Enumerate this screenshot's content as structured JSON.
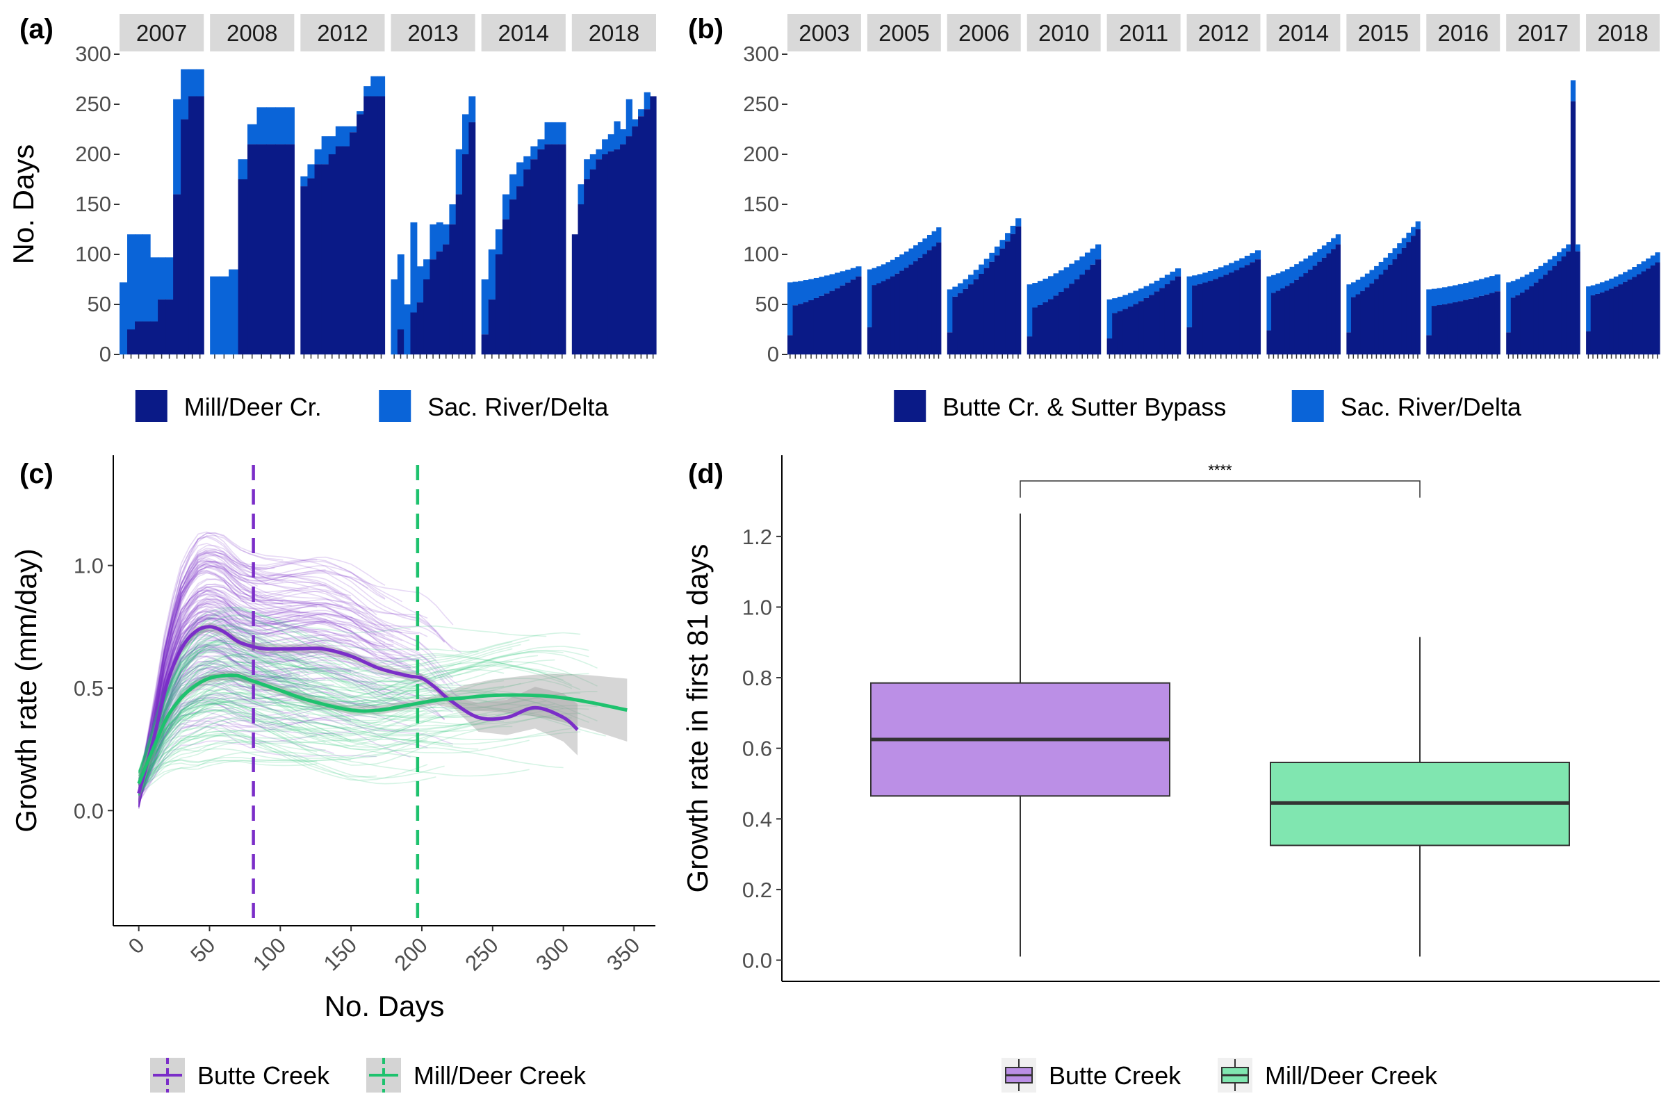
{
  "panels": {
    "a": "(a)",
    "b": "(b)",
    "c": "(c)",
    "d": "(d)"
  },
  "chart_data": [
    {
      "id": "a",
      "type": "bar",
      "ylabel": "No. Days",
      "ylim": [
        0,
        300
      ],
      "yticks": [
        0,
        50,
        100,
        150,
        200,
        250,
        300
      ],
      "legend": [
        "Mill/Deer Cr.",
        "Sac. River/Delta"
      ],
      "legend_position": "bottom",
      "colors": {
        "Mill/Deer Cr.": "#0a1a87",
        "Sac. River/Delta": "#0a64d8"
      },
      "facets": [
        {
          "label": "2007",
          "creek": [
            0,
            25,
            33,
            33,
            33,
            55,
            55,
            160,
            235,
            258,
            258
          ],
          "total": [
            72,
            120,
            120,
            120,
            97,
            97,
            97,
            255,
            285,
            285,
            285
          ]
        },
        {
          "label": "2008",
          "creek": [
            0,
            0,
            0,
            175,
            210,
            210,
            210,
            210,
            210
          ],
          "total": [
            78,
            78,
            85,
            195,
            230,
            247,
            247,
            247,
            247
          ]
        },
        {
          "label": "2012",
          "creek": [
            168,
            176,
            190,
            190,
            200,
            208,
            208,
            222,
            240,
            258,
            258,
            258
          ],
          "total": [
            178,
            190,
            205,
            218,
            218,
            228,
            228,
            228,
            243,
            268,
            278,
            278
          ]
        },
        {
          "label": "2013",
          "creek": [
            0,
            25,
            0,
            42,
            52,
            75,
            95,
            103,
            110,
            130,
            160,
            200,
            232
          ],
          "total": [
            75,
            100,
            50,
            132,
            88,
            95,
            130,
            132,
            130,
            150,
            205,
            240,
            258
          ]
        },
        {
          "label": "2014",
          "creek": [
            20,
            55,
            100,
            135,
            155,
            168,
            185,
            195,
            205,
            210,
            210,
            210
          ],
          "total": [
            75,
            105,
            125,
            160,
            180,
            192,
            198,
            208,
            215,
            232,
            232,
            232
          ]
        },
        {
          "label": "2018",
          "creek": [
            120,
            150,
            175,
            185,
            195,
            200,
            203,
            205,
            210,
            218,
            228,
            238,
            245,
            258
          ],
          "total": [
            80,
            170,
            195,
            200,
            205,
            215,
            220,
            233,
            225,
            255,
            235,
            245,
            262,
            258
          ]
        }
      ]
    },
    {
      "id": "b",
      "type": "bar",
      "ylim": [
        0,
        300
      ],
      "yticks": [
        0,
        50,
        100,
        150,
        200,
        250,
        300
      ],
      "legend": [
        "Butte Cr. & Sutter Bypass",
        "Sac. River/Delta"
      ],
      "legend_position": "bottom",
      "colors": {
        "Butte Cr. & Sutter Bypass": "#0a1a87",
        "Sac. River/Delta": "#0a64d8"
      },
      "facets": [
        {
          "label": "2003",
          "start_creek": 48,
          "end_creek": 78,
          "start_total": 72,
          "end_total": 88,
          "n": 14
        },
        {
          "label": "2005",
          "start_creek": 68,
          "end_creek": 112,
          "start_total": 85,
          "end_total": 127,
          "n": 16
        },
        {
          "label": "2006",
          "start_creek": 55,
          "end_creek": 128,
          "start_total": 65,
          "end_total": 136,
          "n": 14
        },
        {
          "label": "2010",
          "start_creek": 45,
          "end_creek": 95,
          "start_total": 70,
          "end_total": 110,
          "n": 14
        },
        {
          "label": "2011",
          "start_creek": 40,
          "end_creek": 78,
          "start_total": 55,
          "end_total": 86,
          "n": 14
        },
        {
          "label": "2012",
          "start_creek": 68,
          "end_creek": 95,
          "start_total": 78,
          "end_total": 104,
          "n": 14
        },
        {
          "label": "2014",
          "start_creek": 60,
          "end_creek": 110,
          "start_total": 78,
          "end_total": 120,
          "n": 16
        },
        {
          "label": "2015",
          "start_creek": 55,
          "end_creek": 125,
          "start_total": 70,
          "end_total": 133,
          "n": 16
        },
        {
          "label": "2016",
          "start_creek": 48,
          "end_creek": 63,
          "start_total": 65,
          "end_total": 80,
          "n": 14
        },
        {
          "label": "2017",
          "start_creek": 55,
          "end_creek": 103,
          "start_total": 72,
          "end_total": 110,
          "n": 14,
          "spike_creek": 253,
          "spike_total": 274
        },
        {
          "label": "2018",
          "start_creek": 58,
          "end_creek": 92,
          "start_total": 68,
          "end_total": 102,
          "n": 16
        }
      ]
    },
    {
      "id": "c",
      "type": "line",
      "xlabel": "No. Days",
      "ylabel": "Growth rate (mm/day)",
      "xlim": [
        -18,
        365
      ],
      "ylim": [
        -0.47,
        1.45
      ],
      "xticks": [
        0,
        50,
        100,
        150,
        200,
        250,
        300,
        350
      ],
      "yticks": [
        0.0,
        0.5,
        1.0
      ],
      "legend": [
        "Butte Creek",
        "Mill/Deer Creek"
      ],
      "legend_position": "bottom",
      "series": [
        {
          "name": "Butte Creek",
          "color": "#7b2ec8",
          "x": [
            0,
            10,
            20,
            30,
            40,
            50,
            60,
            70,
            80,
            90,
            110,
            130,
            150,
            170,
            190,
            200,
            210,
            220,
            240,
            260,
            280,
            300,
            310
          ],
          "y": [
            0.07,
            0.28,
            0.52,
            0.66,
            0.73,
            0.75,
            0.73,
            0.69,
            0.67,
            0.66,
            0.66,
            0.66,
            0.63,
            0.58,
            0.55,
            0.54,
            0.5,
            0.45,
            0.38,
            0.38,
            0.42,
            0.38,
            0.33
          ]
        },
        {
          "name": "Mill/Deer Creek",
          "color": "#1ec26e",
          "x": [
            0,
            10,
            20,
            30,
            40,
            50,
            60,
            70,
            80,
            100,
            120,
            150,
            170,
            190,
            210,
            230,
            250,
            280,
            300,
            320,
            345
          ],
          "y": [
            0.11,
            0.25,
            0.38,
            0.46,
            0.51,
            0.54,
            0.55,
            0.55,
            0.53,
            0.49,
            0.45,
            0.41,
            0.41,
            0.43,
            0.45,
            0.46,
            0.47,
            0.47,
            0.46,
            0.44,
            0.41
          ]
        }
      ],
      "vlines": [
        {
          "x": 81,
          "color": "#7b2ec8"
        },
        {
          "x": 197,
          "color": "#1ec26e"
        }
      ]
    },
    {
      "id": "d",
      "type": "box",
      "ylabel": "Growth rate in first 81 days",
      "ylim": [
        -0.06,
        1.43
      ],
      "yticks": [
        0.0,
        0.2,
        0.4,
        0.6,
        0.8,
        1.0,
        1.2
      ],
      "legend": [
        "Butte Creek",
        "Mill/Deer Creek"
      ],
      "legend_position": "bottom",
      "significance": "****",
      "boxes": [
        {
          "name": "Butte Creek",
          "color": "#bb8fe6",
          "min": 0.01,
          "q1": 0.465,
          "median": 0.625,
          "q3": 0.785,
          "max": 1.265
        },
        {
          "name": "Mill/Deer Creek",
          "color": "#80e6b0",
          "min": 0.01,
          "q1": 0.325,
          "median": 0.445,
          "q3": 0.56,
          "max": 0.915
        }
      ]
    }
  ]
}
